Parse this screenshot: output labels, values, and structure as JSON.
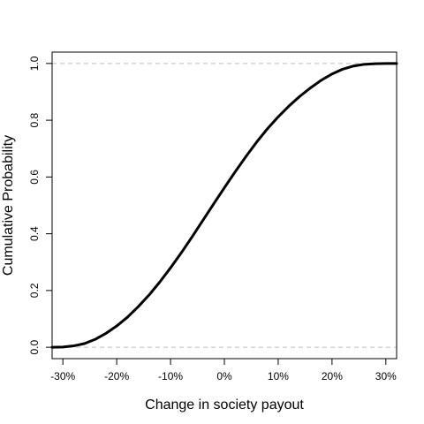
{
  "chart_data": {
    "type": "line",
    "title": "",
    "xlabel": "Change in society payout",
    "ylabel": "Cumulative Probability",
    "xlim": [
      -0.32,
      0.32
    ],
    "ylim": [
      -0.04,
      1.04
    ],
    "x_ticks": [
      -0.3,
      -0.2,
      -0.1,
      0,
      0.1,
      0.2,
      0.3
    ],
    "x_tick_labels": [
      "-30%",
      "-20%",
      "-10%",
      "0%",
      "10%",
      "20%",
      "30%"
    ],
    "y_ticks": [
      0,
      0.2,
      0.4,
      0.6,
      0.8,
      1.0
    ],
    "y_tick_labels": [
      "0.0",
      "0.2",
      "0.4",
      "0.6",
      "0.8",
      "1.0"
    ],
    "reference_lines_y": [
      0,
      1
    ],
    "grid": false,
    "legend": "none",
    "series": [
      {
        "x": [
          -0.32,
          -0.3,
          -0.28,
          -0.26,
          -0.24,
          -0.22,
          -0.2,
          -0.18,
          -0.16,
          -0.14,
          -0.12,
          -0.1,
          -0.08,
          -0.06,
          -0.04,
          -0.02,
          0.0,
          0.02,
          0.04,
          0.06,
          0.08,
          0.1,
          0.12,
          0.14,
          0.16,
          0.18,
          0.2,
          0.22,
          0.24,
          0.26,
          0.28,
          0.3,
          0.32
        ],
        "y": [
          0.0,
          0.001,
          0.005,
          0.013,
          0.028,
          0.049,
          0.075,
          0.106,
          0.143,
          0.184,
          0.23,
          0.28,
          0.333,
          0.389,
          0.447,
          0.505,
          0.562,
          0.618,
          0.672,
          0.723,
          0.77,
          0.812,
          0.85,
          0.884,
          0.914,
          0.941,
          0.963,
          0.98,
          0.991,
          0.997,
          0.999,
          1.0,
          1.0
        ]
      }
    ],
    "colors": {
      "line": "#000000",
      "reference": "#bebebe",
      "frame": "#000000"
    }
  }
}
